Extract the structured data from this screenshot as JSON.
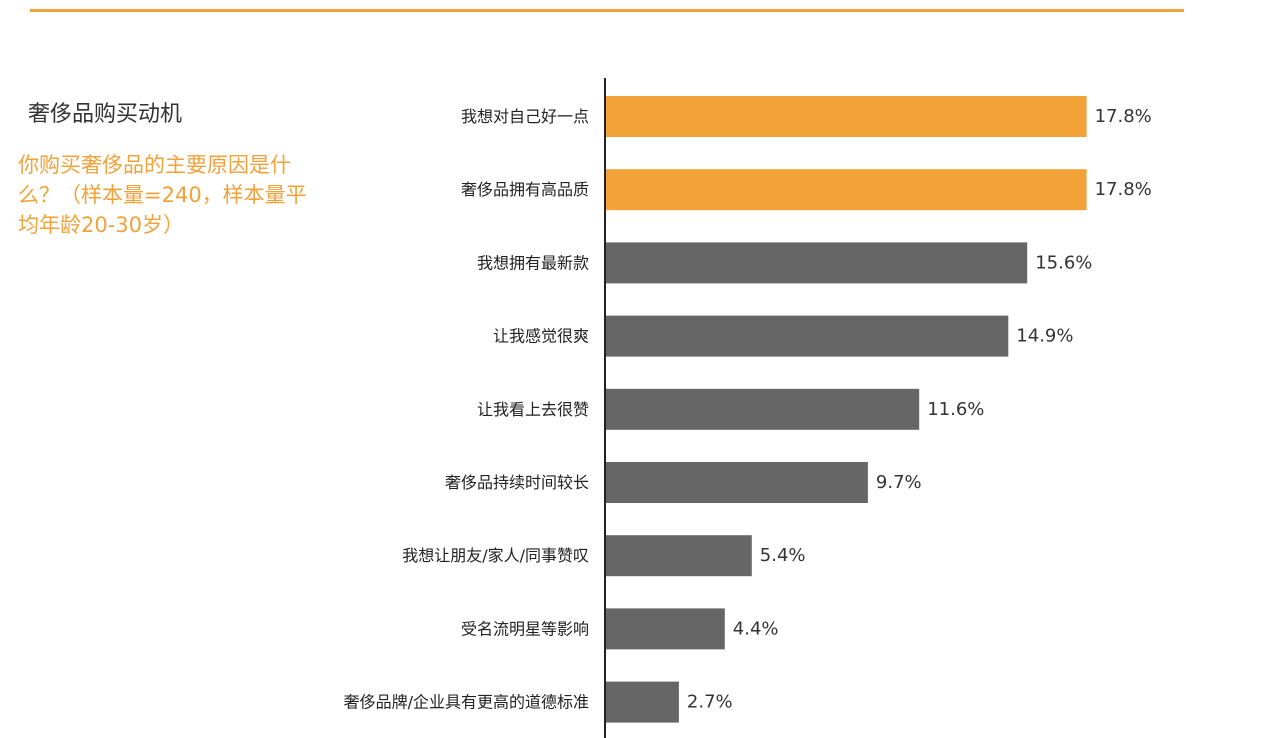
{
  "header": {
    "title": "奢侈品购买动机",
    "question": "你购买奢侈品的主要原因是什么？（样本量=240，样本量平均年龄20-30岁）"
  },
  "chart_data": {
    "type": "bar",
    "orientation": "horizontal",
    "categories": [
      "我想对自己好一点",
      "奢侈品拥有高品质",
      "我想拥有最新款",
      "让我感觉很爽",
      "让我看上去很赞",
      "奢侈品持续时间较长",
      "我想让朋友/家人/同事赞叹",
      "受名流明星等影响",
      "奢侈品牌/企业具有更高的道德标准"
    ],
    "values": [
      17.8,
      17.8,
      15.6,
      14.9,
      11.6,
      9.7,
      5.4,
      4.4,
      2.7
    ],
    "value_labels": [
      "17.8%",
      "17.8%",
      "15.6%",
      "14.9%",
      "11.6%",
      "9.7%",
      "5.4%",
      "4.4%",
      "2.7%"
    ],
    "highlighted": [
      true,
      true,
      false,
      false,
      false,
      false,
      false,
      false,
      false
    ],
    "grid": false,
    "legend": "none"
  },
  "colors": {
    "highlight": "#f3a23a",
    "default": "#666666",
    "axis": "#222222",
    "accent_rule": "#f3a23a"
  }
}
